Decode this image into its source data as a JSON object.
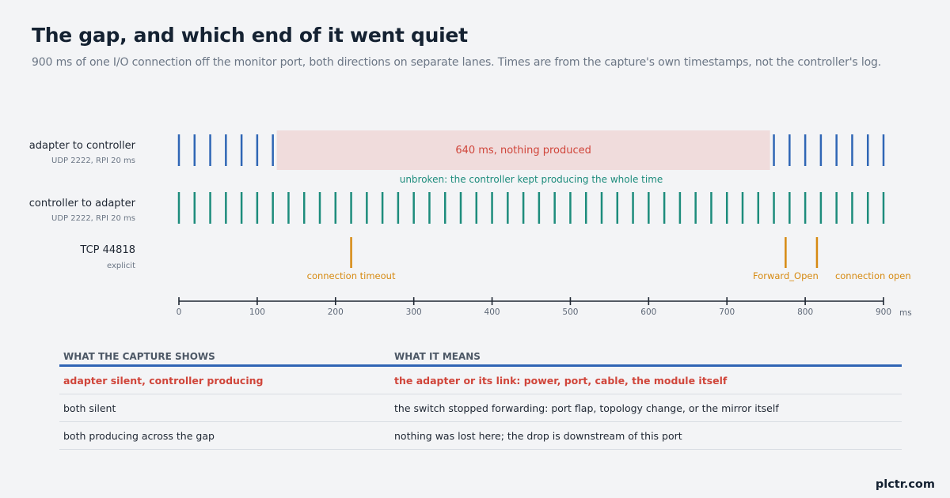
{
  "title": "The gap, and which end of it went quiet",
  "subtitle": "900 ms of one I/O connection off the monitor port, both directions on separate lanes. Times are from the capture's own timestamps, not the controller's log.",
  "brand": "plctr.com",
  "colors": {
    "adapter_lane": "#2f66b5",
    "controller_lane": "#1d8c7c",
    "tcp_events": "#d68a12",
    "gap_fill": "#f0dcdc",
    "gap_text": "#d0453a",
    "axis": "#1f2733"
  },
  "chart_data": {
    "type": "timeline",
    "xlim": [
      0,
      900
    ],
    "x_unit": "ms",
    "x_ticks": [
      0,
      100,
      200,
      300,
      400,
      500,
      600,
      700,
      800,
      900
    ],
    "lanes": [
      {
        "name": "adapter to controller",
        "detail": "UDP 2222, RPI 20 ms",
        "kind": "packets",
        "color": "#2f66b5",
        "packets": [
          0,
          20,
          40,
          60,
          80,
          100,
          120,
          760,
          780,
          800,
          820,
          840,
          860,
          880,
          900
        ],
        "gap": {
          "start": 125,
          "end": 755,
          "label": "640 ms, nothing produced"
        }
      },
      {
        "name": "controller to adapter",
        "detail": "UDP 2222, RPI 20 ms",
        "kind": "packets",
        "color": "#1d8c7c",
        "packets": [
          0,
          20,
          40,
          60,
          80,
          100,
          120,
          140,
          160,
          180,
          200,
          220,
          240,
          260,
          280,
          300,
          320,
          340,
          360,
          380,
          400,
          420,
          440,
          460,
          480,
          500,
          520,
          540,
          560,
          580,
          600,
          620,
          640,
          660,
          680,
          700,
          720,
          740,
          760,
          780,
          800,
          820,
          840,
          860,
          880,
          900
        ],
        "annotation": "unbroken: the controller kept producing the whole time"
      },
      {
        "name": "TCP 44818",
        "detail": "explicit",
        "kind": "events",
        "color": "#d68a12",
        "events": [
          {
            "t": 220,
            "label": "connection timeout"
          },
          {
            "t": 775,
            "label": "Forward_Open"
          },
          {
            "t": 815,
            "label": "connection open"
          }
        ]
      }
    ]
  },
  "table": {
    "headers": [
      "WHAT THE CAPTURE SHOWS",
      "WHAT IT MEANS"
    ],
    "rows": [
      {
        "shows": "adapter silent, controller producing",
        "means": "the adapter or its link: power, port, cable, the module itself",
        "highlight": true
      },
      {
        "shows": "both silent",
        "means": "the switch stopped forwarding: port flap, topology change, or the mirror itself",
        "highlight": false
      },
      {
        "shows": "both producing across the gap",
        "means": "nothing was lost here; the drop is downstream of this port",
        "highlight": false
      }
    ]
  }
}
